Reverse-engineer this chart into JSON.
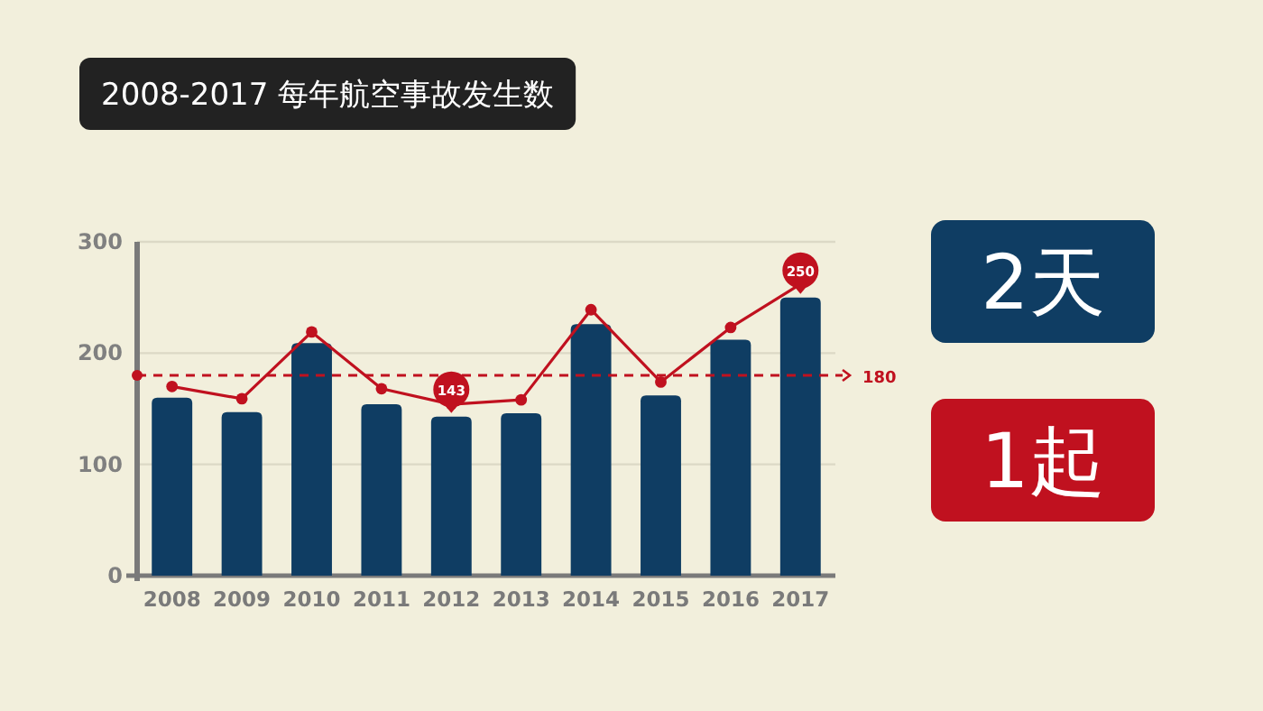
{
  "chart_data": {
    "type": "bar",
    "title": "2008-2017 每年航空事故发生数",
    "categories": [
      "2008",
      "2009",
      "2010",
      "2011",
      "2012",
      "2013",
      "2014",
      "2015",
      "2016",
      "2017"
    ],
    "series": [
      {
        "color": "#0f3d63",
        "values": [
          160,
          147,
          209,
          154,
          143,
          146,
          226,
          162,
          212,
          250
        ],
        "value_labels": [
          null,
          null,
          null,
          null,
          "143",
          null,
          null,
          null,
          null,
          "250"
        ]
      },
      {
        "type": "line",
        "color": "#c0111f",
        "values": [
          170,
          159,
          219,
          168,
          154,
          158,
          239,
          174,
          223,
          262
        ]
      }
    ],
    "ylim": [
      0,
      300
    ],
    "yticks": [
      0,
      100,
      200,
      300
    ],
    "grid": "y",
    "marker": "circle",
    "line_style": "solid",
    "ref_lines": [
      {
        "axis": "y",
        "value": 180,
        "label": "180",
        "color": "#c0111f",
        "line_style": "dashed"
      }
    ],
    "annotations": [
      "2天",
      "1起"
    ]
  }
}
